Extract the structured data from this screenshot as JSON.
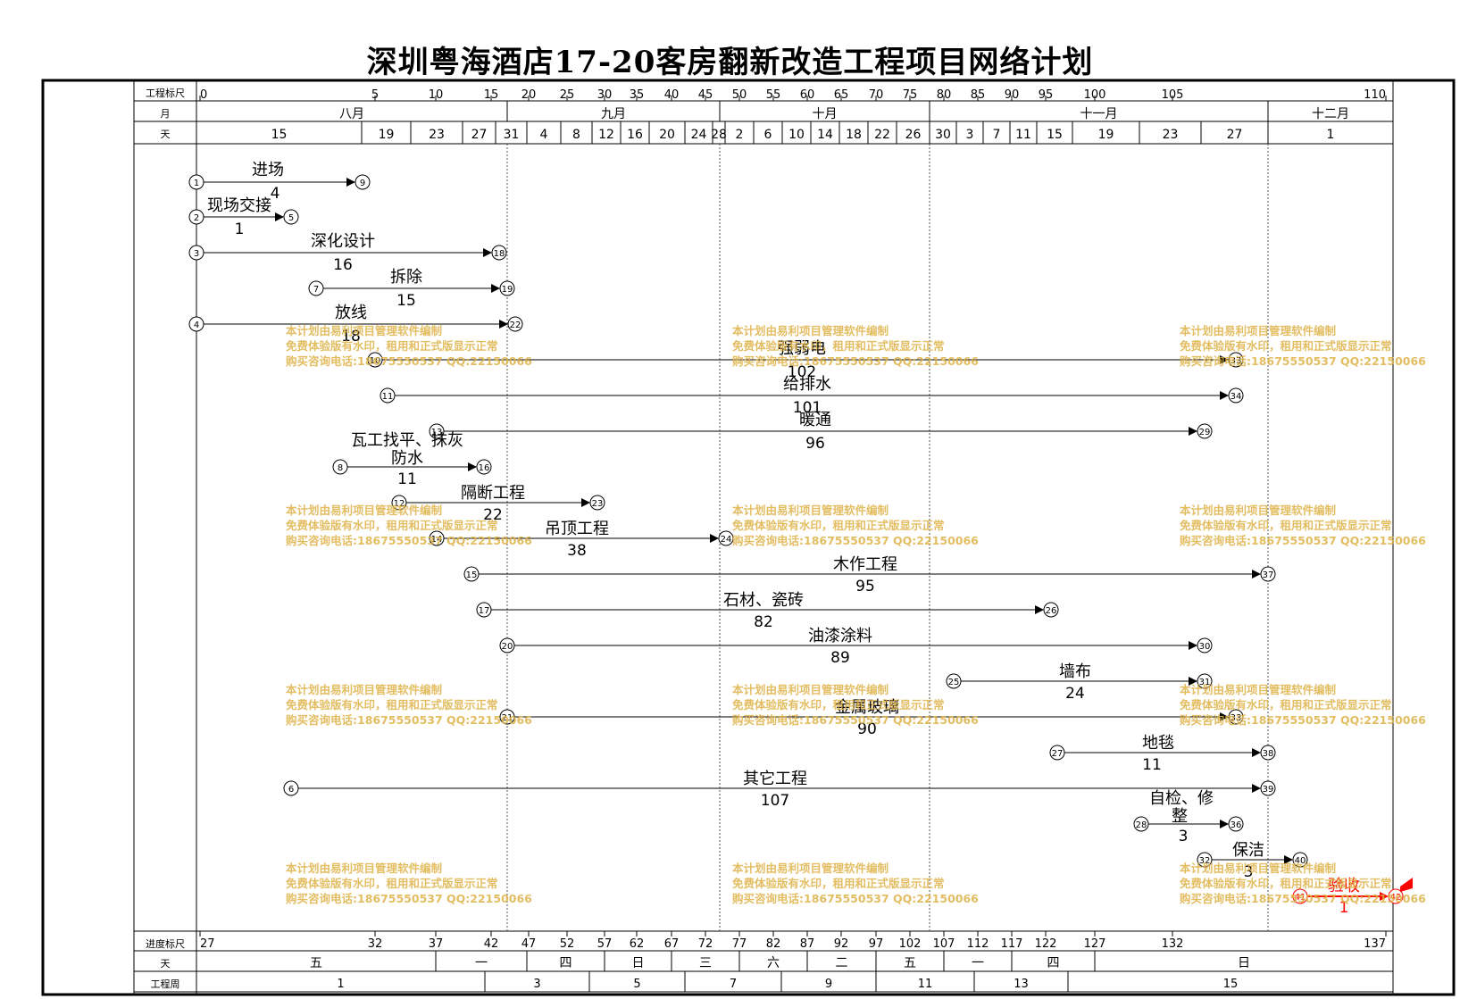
{
  "title": "深圳粤海酒店17-20客房翻新改造工程项目网络计划",
  "chart_data": {
    "type": "network-timeline",
    "title": "深圳粤海酒店17-20客房翻新改造工程项目网络计划",
    "row_labels": {
      "engineering_scale": "工程标尺",
      "month": "月",
      "day": "天",
      "progress_scale": "进度标尺",
      "weekday": "天",
      "engineering_week": "工程周"
    },
    "engineering_scale_ticks": [
      "0",
      "5",
      "10",
      "15",
      "20",
      "25",
      "30",
      "35",
      "40",
      "45",
      "50",
      "55",
      "60",
      "65",
      "70",
      "75",
      "80",
      "85",
      "90",
      "95",
      "100",
      "105",
      "110"
    ],
    "months": [
      "八月",
      "九月",
      "十月",
      "十一月",
      "十二月"
    ],
    "days": [
      "15",
      "19",
      "23",
      "27",
      "31",
      "4",
      "8",
      "12",
      "16",
      "20",
      "24",
      "28",
      "2",
      "6",
      "10",
      "14",
      "18",
      "22",
      "26",
      "30",
      "3",
      "7",
      "11",
      "15",
      "19",
      "23",
      "27",
      "1"
    ],
    "progress_scale_ticks": [
      "27",
      "32",
      "37",
      "42",
      "47",
      "52",
      "57",
      "62",
      "67",
      "72",
      "77",
      "82",
      "87",
      "92",
      "97",
      "102",
      "107",
      "112",
      "117",
      "122",
      "127",
      "132",
      "137"
    ],
    "weekdays": [
      "五",
      "一",
      "四",
      "日",
      "三",
      "六",
      "二",
      "五",
      "一",
      "四",
      "日"
    ],
    "engineering_weeks": [
      "1",
      "3",
      "5",
      "7",
      "9",
      "11",
      "13",
      "15"
    ],
    "activities": [
      {
        "name": "进场",
        "from": "1",
        "to": "9",
        "duration": "4"
      },
      {
        "name": "现场交接",
        "from": "2",
        "to": "5",
        "duration": "1"
      },
      {
        "name": "深化设计",
        "from": "3",
        "to": "18",
        "duration": "16"
      },
      {
        "name": "拆除",
        "from": "7",
        "to": "19",
        "duration": "15"
      },
      {
        "name": "放线",
        "from": "4",
        "to": "22",
        "duration": "18"
      },
      {
        "name": "强弱电",
        "from": "10",
        "to": "33",
        "duration": "102"
      },
      {
        "name": "给排水",
        "from": "11",
        "to": "34",
        "duration": "101"
      },
      {
        "name": "暖通",
        "from": "13",
        "to": "29",
        "duration": "96"
      },
      {
        "name": "瓦工找平、抹灰",
        "from": "",
        "to": "",
        "duration": ""
      },
      {
        "name": "防水",
        "from": "8",
        "to": "16",
        "duration": "11"
      },
      {
        "name": "隔断工程",
        "from": "12",
        "to": "23",
        "duration": "22"
      },
      {
        "name": "吊顶工程",
        "from": "14",
        "to": "24",
        "duration": "38"
      },
      {
        "name": "木作工程",
        "from": "15",
        "to": "37",
        "duration": "95"
      },
      {
        "name": "石材、瓷砖",
        "from": "17",
        "to": "26",
        "duration": "82"
      },
      {
        "name": "油漆涂料",
        "from": "20",
        "to": "30",
        "duration": "89"
      },
      {
        "name": "墙布",
        "from": "25",
        "to": "31",
        "duration": "24"
      },
      {
        "name": "金属玻璃",
        "from": "21",
        "to": "33",
        "duration": "90"
      },
      {
        "name": "地毯",
        "from": "27",
        "to": "38",
        "duration": "11"
      },
      {
        "name": "其它工程",
        "from": "6",
        "to": "39",
        "duration": "107"
      },
      {
        "name": "自检、修整",
        "from": "28",
        "to": "36",
        "duration": "3"
      },
      {
        "name": "保洁",
        "from": "32",
        "to": "40",
        "duration": "3"
      },
      {
        "name": "验收",
        "from": "41",
        "to": "42",
        "duration": "1",
        "critical": true
      }
    ],
    "watermark": [
      "本计划由易利项目管理软件编制",
      "免费体验版有水印，租用和正式版显示正常",
      "购买咨询电话:18675550537 QQ:22150066"
    ],
    "colors": {
      "critical": "#ff0000",
      "watermark": "#deb246",
      "line": "#000000"
    }
  }
}
